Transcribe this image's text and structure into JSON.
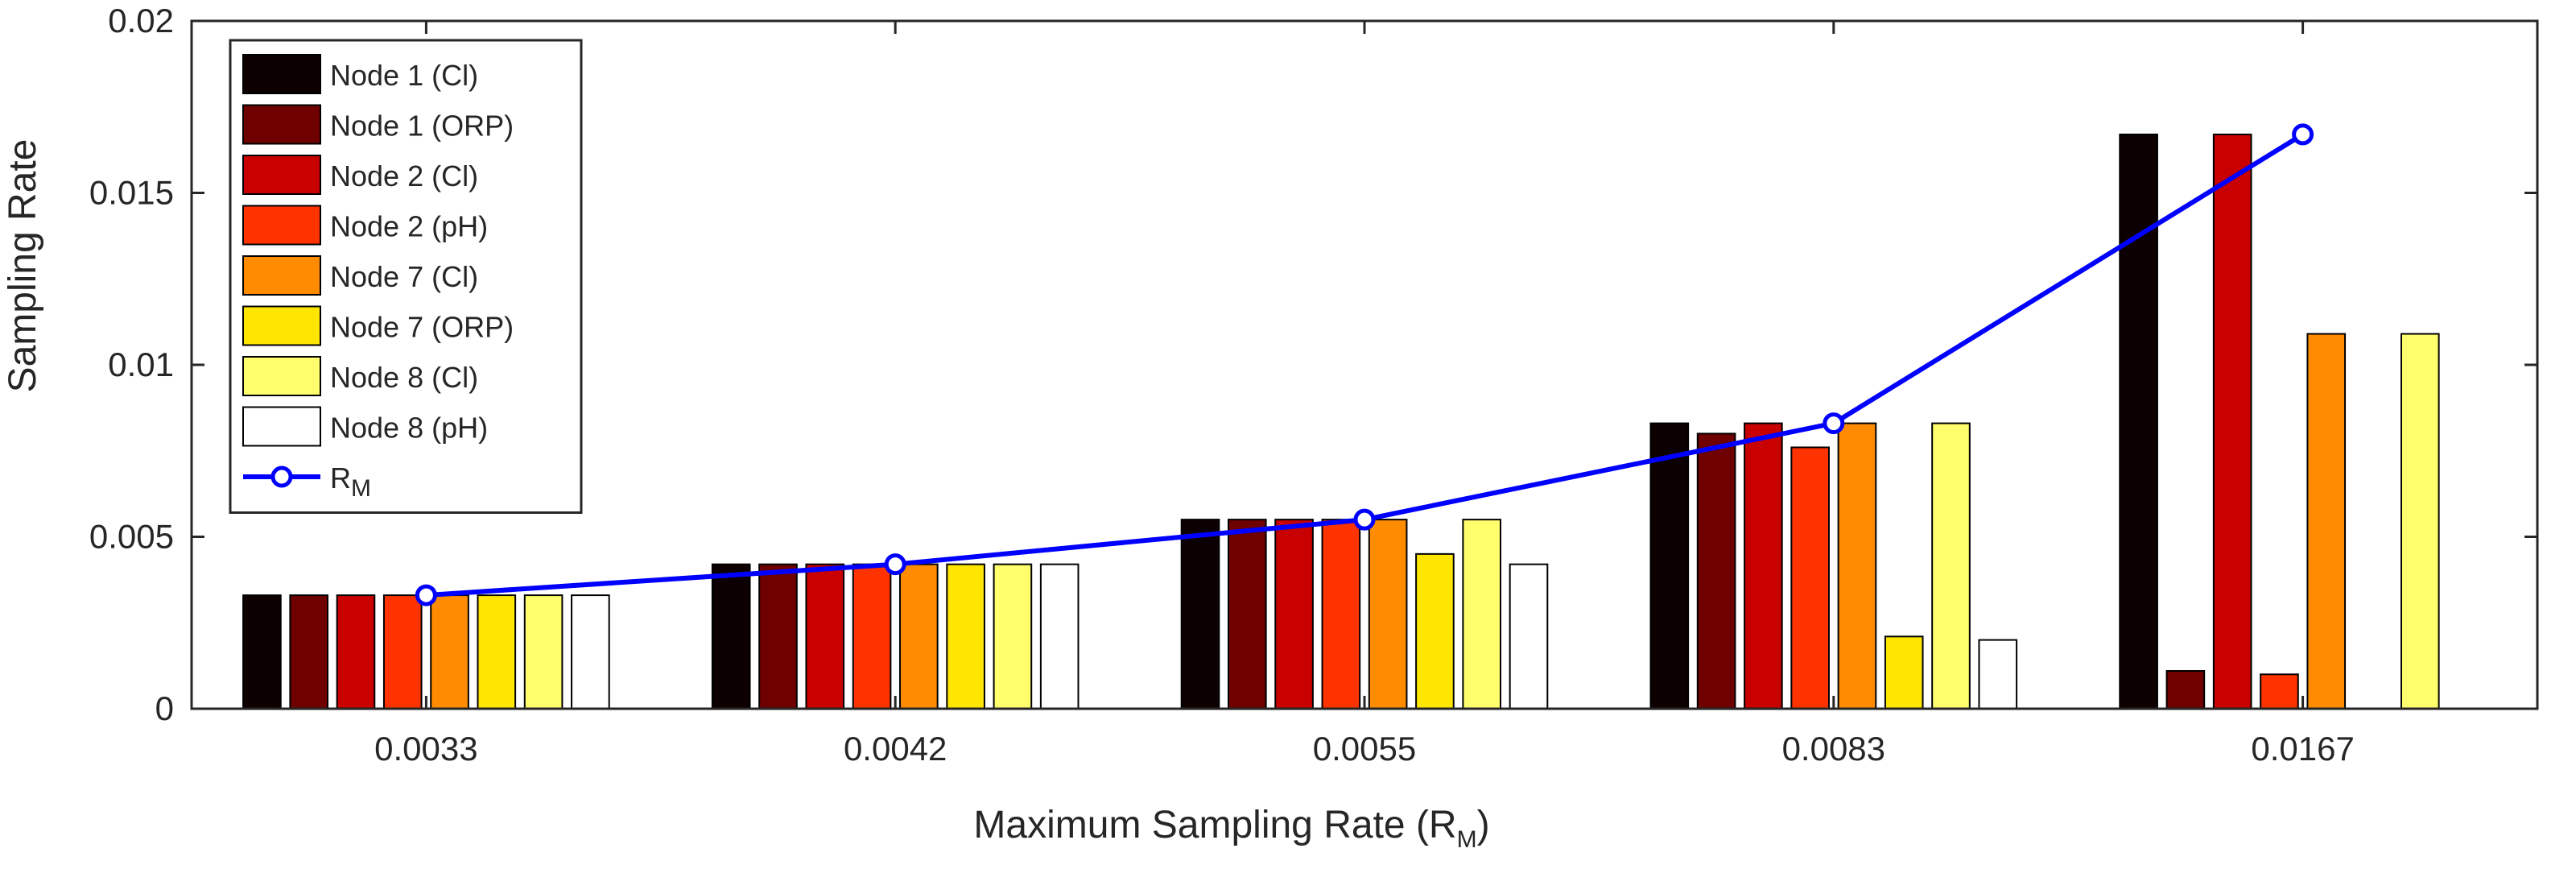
{
  "chart_data": {
    "type": "bar",
    "title": "",
    "xlabel": {
      "main": "Maximum Sampling Rate (R",
      "sub": "M",
      "suffix": ")"
    },
    "ylabel": "Sampling Rate",
    "ylim": [
      0,
      0.02
    ],
    "yticks": [
      0,
      0.005,
      0.01,
      0.015,
      0.02
    ],
    "ytick_labels": [
      "0",
      "0.005",
      "0.01",
      "0.015",
      "0.02"
    ],
    "categories": [
      "0.0033",
      "0.0042",
      "0.0055",
      "0.0083",
      "0.0167"
    ],
    "series": [
      {
        "name": "Node 1 (Cl)",
        "color": "#0d0000",
        "values": [
          0.0033,
          0.0042,
          0.0055,
          0.0083,
          0.0167
        ]
      },
      {
        "name": "Node 1 (ORP)",
        "color": "#6e0000",
        "values": [
          0.0033,
          0.0042,
          0.0055,
          0.008,
          0.0011
        ]
      },
      {
        "name": "Node 2 (Cl)",
        "color": "#c80000",
        "values": [
          0.0033,
          0.0042,
          0.0055,
          0.0083,
          0.0167
        ]
      },
      {
        "name": "Node 2 (pH)",
        "color": "#ff3300",
        "values": [
          0.0033,
          0.0042,
          0.0055,
          0.0076,
          0.001
        ]
      },
      {
        "name": "Node 7 (Cl)",
        "color": "#ff8c00",
        "values": [
          0.0033,
          0.0042,
          0.0055,
          0.0083,
          0.0109
        ]
      },
      {
        "name": "Node 7 (ORP)",
        "color": "#ffe600",
        "values": [
          0.0033,
          0.0042,
          0.0045,
          0.0021,
          0.0
        ]
      },
      {
        "name": "Node 8 (Cl)",
        "color": "#ffff6e",
        "values": [
          0.0033,
          0.0042,
          0.0055,
          0.0083,
          0.0109
        ]
      },
      {
        "name": "Node 8 (pH)",
        "color": "#ffffff",
        "values": [
          0.0033,
          0.0042,
          0.0042,
          0.002,
          0.0
        ]
      }
    ],
    "line": {
      "name": "R",
      "name_sub": "M",
      "color": "#0000ff",
      "values": [
        0.0033,
        0.0042,
        0.0055,
        0.0083,
        0.0167
      ]
    },
    "legend_position": "top-left",
    "grid": false
  }
}
